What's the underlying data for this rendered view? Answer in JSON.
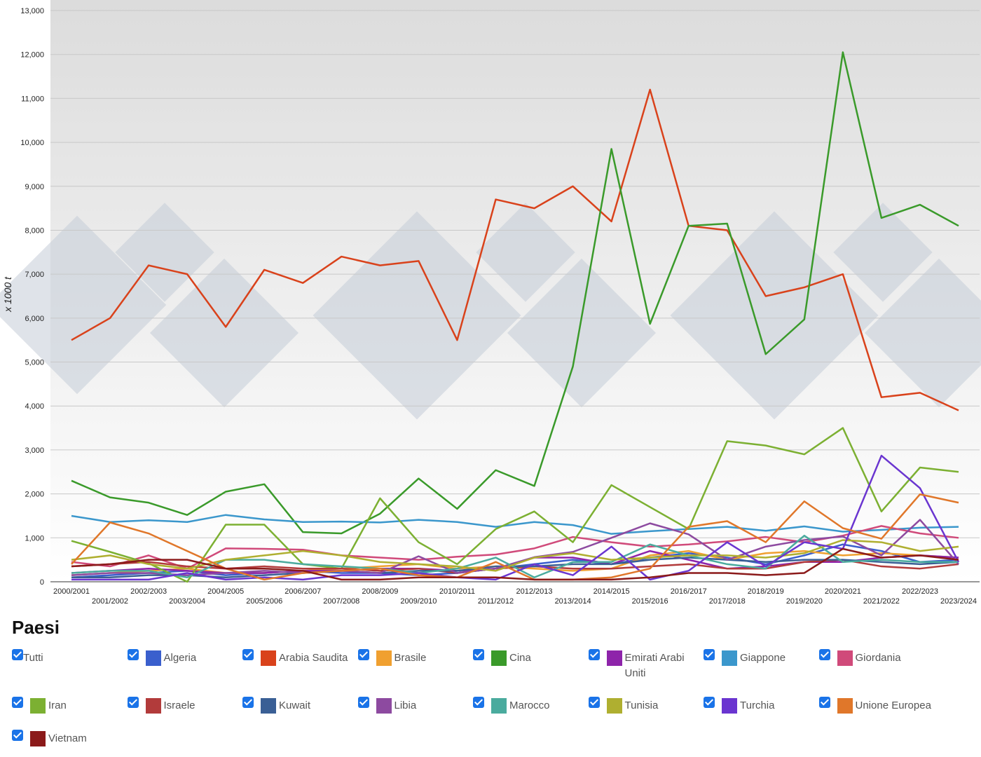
{
  "chart_data": {
    "type": "line",
    "y_label": "x 1000 t",
    "categories": [
      "2000/2001",
      "2001/2002",
      "2002/2003",
      "2003/2004",
      "2004/2005",
      "2005/2006",
      "2006/2007",
      "2007/2008",
      "2008/2009",
      "2009/2010",
      "2010/2011",
      "2011/2012",
      "2012/2013",
      "2013/2014",
      "2014/2015",
      "2015/2016",
      "2016/2017",
      "2017/2018",
      "2018/2019",
      "2019/2020",
      "2020/2021",
      "2021/2022",
      "2022/2023",
      "2023/2024"
    ],
    "ylim": [
      0,
      13000
    ],
    "yticks": [
      0,
      {
        "value": 1000,
        "label": "1,000"
      },
      {
        "value": 2000,
        "label": "2,000"
      },
      {
        "value": 3000,
        "label": "3,000"
      },
      {
        "value": 4000,
        "label": "4,000"
      },
      {
        "value": 5000,
        "label": "5,000"
      },
      {
        "value": 6000,
        "label": "6,000"
      },
      {
        "value": 7000,
        "label": "7,000"
      },
      {
        "value": 8000,
        "label": "8,000"
      },
      {
        "value": 9000,
        "label": "9,000"
      },
      {
        "value": 10000,
        "label": "10,000"
      },
      {
        "value": 11000,
        "label": "11,000"
      },
      {
        "value": 12000,
        "label": "12,000"
      },
      {
        "value": 13000,
        "label": "13,000"
      }
    ],
    "grid": true,
    "legend_title": "Paesi",
    "legend_all": "Tutti",
    "series": [
      {
        "name": "Algeria",
        "color": "#3a5fcd",
        "values": [
          100,
          150,
          200,
          250,
          150,
          200,
          250,
          200,
          200,
          150,
          200,
          300,
          400,
          500,
          400,
          550,
          650,
          550,
          400,
          600,
          850,
          700,
          450,
          500
        ]
      },
      {
        "name": "Arabia Saudita",
        "color": "#d9421b",
        "values": [
          5500,
          6000,
          7200,
          7000,
          5800,
          7100,
          6800,
          7400,
          7200,
          7300,
          5500,
          8700,
          8500,
          9000,
          8200,
          11200,
          8100,
          8000,
          6500,
          6700,
          7000,
          4200,
          4300,
          3900
        ]
      },
      {
        "name": "Brasile",
        "color": "#f0a030",
        "values": [
          150,
          200,
          250,
          300,
          200,
          200,
          250,
          300,
          350,
          400,
          300,
          350,
          300,
          250,
          300,
          600,
          700,
          500,
          650,
          700,
          600,
          650,
          600,
          550
        ]
      },
      {
        "name": "Cina",
        "color": "#3a9a2a",
        "values": [
          2300,
          1920,
          1800,
          1520,
          2050,
          2220,
          1130,
          1100,
          1550,
          2350,
          1660,
          2540,
          2180,
          4900,
          9850,
          5870,
          8100,
          8150,
          5180,
          5970,
          12050,
          8280,
          8580,
          8100
        ]
      },
      {
        "name": "Emirati Arabi Uniti",
        "color": "#8e24aa",
        "values": [
          200,
          250,
          300,
          250,
          200,
          200,
          250,
          250,
          300,
          300,
          250,
          300,
          550,
          550,
          400,
          700,
          500,
          300,
          350,
          450,
          450,
          550,
          600,
          550
        ]
      },
      {
        "name": "Giappone",
        "color": "#3b97cc",
        "values": [
          1500,
          1360,
          1400,
          1360,
          1520,
          1420,
          1360,
          1370,
          1350,
          1410,
          1360,
          1250,
          1360,
          1290,
          1090,
          1150,
          1200,
          1250,
          1160,
          1260,
          1140,
          1180,
          1230,
          1250
        ]
      },
      {
        "name": "Giordania",
        "color": "#d04a7a",
        "values": [
          450,
          350,
          600,
          300,
          760,
          750,
          730,
          600,
          550,
          500,
          570,
          620,
          760,
          1020,
          900,
          800,
          850,
          920,
          1020,
          900,
          1050,
          1270,
          1100,
          1000
        ]
      },
      {
        "name": "Iran",
        "color": "#7cb032",
        "values": [
          930,
          680,
          420,
          0,
          1300,
          1300,
          400,
          300,
          1900,
          900,
          400,
          1200,
          1600,
          900,
          2200,
          1700,
          1200,
          3200,
          3100,
          2900,
          3500,
          1600,
          2600,
          2500
        ]
      },
      {
        "name": "Israele",
        "color": "#b23b3b",
        "values": [
          350,
          400,
          450,
          350,
          300,
          350,
          300,
          300,
          250,
          300,
          200,
          300,
          350,
          300,
          300,
          350,
          400,
          300,
          300,
          450,
          500,
          350,
          300,
          400
        ]
      },
      {
        "name": "Kuwait",
        "color": "#3a5f95",
        "values": [
          100,
          100,
          150,
          150,
          100,
          150,
          200,
          250,
          200,
          250,
          250,
          350,
          350,
          400,
          400,
          500,
          550,
          500,
          450,
          500,
          500,
          450,
          400,
          450
        ]
      },
      {
        "name": "Libia",
        "color": "#8d4aa0",
        "values": [
          150,
          200,
          200,
          150,
          200,
          250,
          200,
          250,
          200,
          580,
          200,
          300,
          560,
          680,
          1000,
          1330,
          1080,
          500,
          800,
          950,
          1030,
          600,
          1410,
          400
        ]
      },
      {
        "name": "Marocco",
        "color": "#4aab9e",
        "values": [
          200,
          250,
          250,
          100,
          500,
          500,
          400,
          350,
          300,
          200,
          300,
          550,
          100,
          450,
          450,
          850,
          600,
          400,
          300,
          1050,
          450,
          500,
          450,
          450
        ]
      },
      {
        "name": "Tunisia",
        "color": "#afaf30",
        "values": [
          500,
          600,
          400,
          300,
          500,
          600,
          700,
          600,
          450,
          400,
          350,
          250,
          550,
          650,
          500,
          550,
          600,
          600,
          550,
          650,
          950,
          900,
          700,
          800
        ]
      },
      {
        "name": "Turchia",
        "color": "#6a35d0",
        "values": [
          50,
          50,
          50,
          200,
          50,
          100,
          50,
          150,
          150,
          200,
          100,
          50,
          400,
          150,
          800,
          50,
          250,
          900,
          350,
          900,
          750,
          2870,
          2130,
          450
        ]
      },
      {
        "name": "Unione Europea",
        "color": "#e0772a",
        "values": [
          400,
          1350,
          1100,
          700,
          300,
          50,
          200,
          250,
          300,
          150,
          100,
          450,
          50,
          50,
          100,
          300,
          1250,
          1380,
          900,
          1830,
          1220,
          980,
          1990,
          1800
        ]
      },
      {
        "name": "Vietnam",
        "color": "#8b1a1a",
        "values": [
          350,
          400,
          500,
          500,
          300,
          300,
          250,
          50,
          50,
          100,
          100,
          100,
          50,
          50,
          50,
          100,
          200,
          200,
          150,
          200,
          750,
          550,
          600,
          500
        ]
      }
    ]
  }
}
